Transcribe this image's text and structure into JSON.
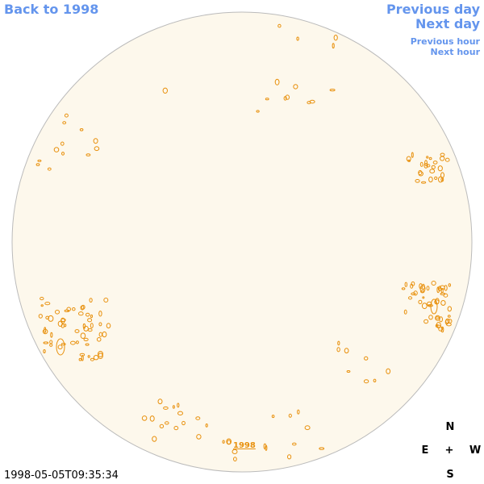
{
  "nav": {
    "back": "Back to 1998",
    "previous_day": "Previous day",
    "next_day": "Next day",
    "previous_hour": "Previous hour",
    "next_hour": "Next hour"
  },
  "disk_label": "1998",
  "timestamp": "1998-05-05T09:35:34",
  "compass": {
    "north": "N",
    "east": "E",
    "center": "+",
    "west": "W",
    "south": "S"
  }
}
